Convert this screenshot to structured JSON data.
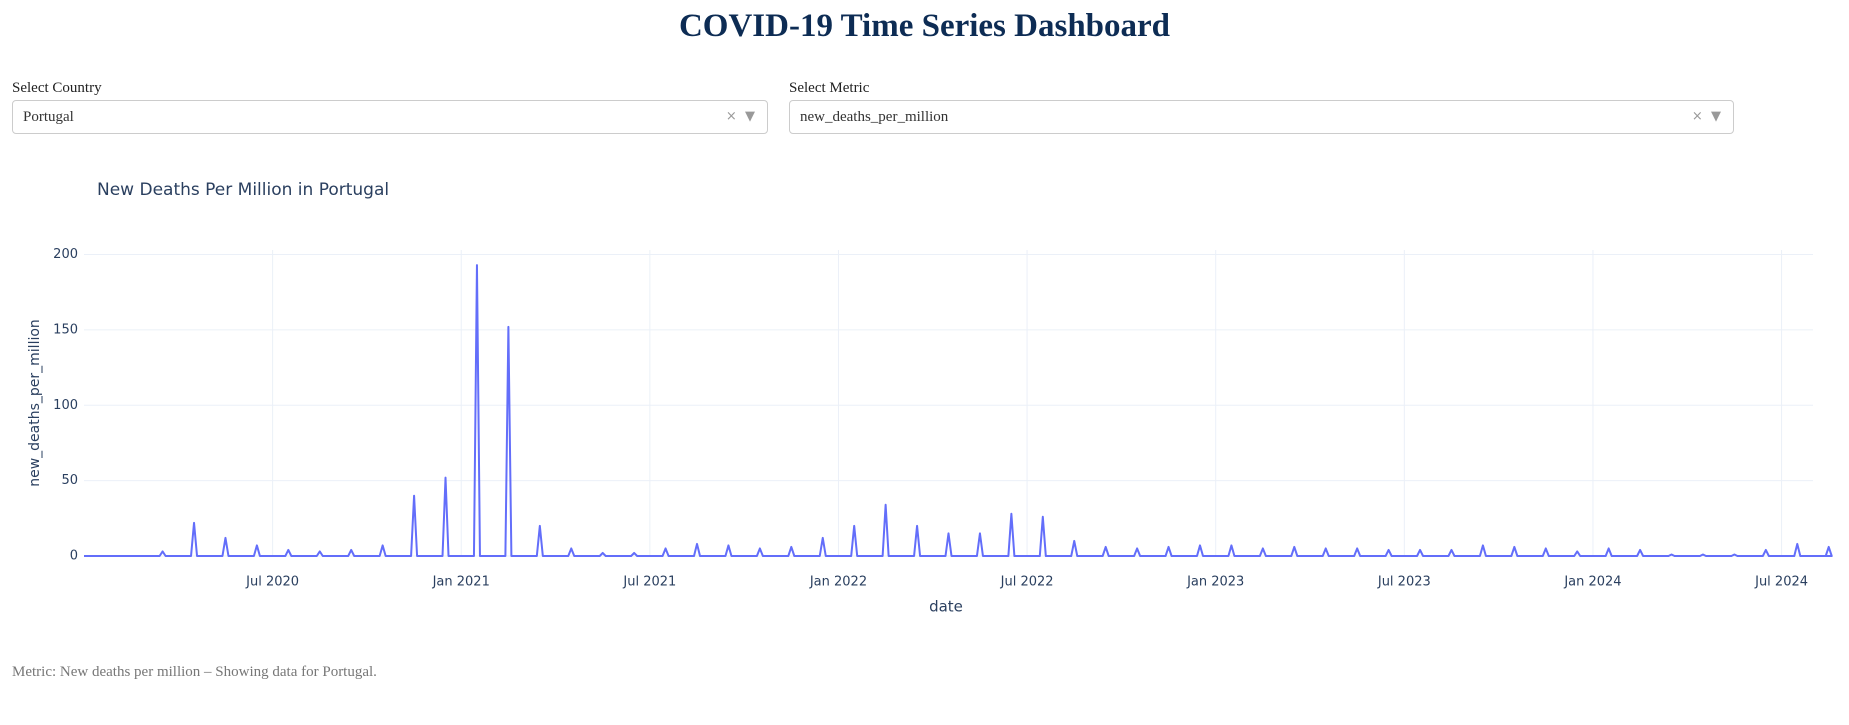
{
  "header": {
    "title": "COVID-19 Time Series Dashboard"
  },
  "controls": [
    {
      "label": "Select Country",
      "value": "Portugal"
    },
    {
      "label": "Select Metric",
      "value": "new_deaths_per_million"
    }
  ],
  "chart_data": {
    "type": "line",
    "title": "New Deaths Per Million in Portugal",
    "x_label": "date",
    "y_label": "new_deaths_per_million",
    "x": [
      "2020-01",
      "2020-02",
      "2020-03",
      "2020-04",
      "2020-05",
      "2020-06",
      "2020-07",
      "2020-08",
      "2020-09",
      "2020-10",
      "2020-11",
      "2020-12",
      "2021-01",
      "2021-02",
      "2021-03",
      "2021-04",
      "2021-05",
      "2021-06",
      "2021-07",
      "2021-08",
      "2021-09",
      "2021-10",
      "2021-11",
      "2021-12",
      "2022-01",
      "2022-02",
      "2022-03",
      "2022-04",
      "2022-05",
      "2022-06",
      "2022-07",
      "2022-08",
      "2022-09",
      "2022-10",
      "2022-11",
      "2022-12",
      "2023-01",
      "2023-02",
      "2023-03",
      "2023-04",
      "2023-05",
      "2023-06",
      "2023-07",
      "2023-08",
      "2023-09",
      "2023-10",
      "2023-11",
      "2023-12",
      "2024-01",
      "2024-02",
      "2024-03",
      "2024-04",
      "2024-05",
      "2024-06",
      "2024-07",
      "2024-08"
    ],
    "series": [
      {
        "name": "new_deaths_per_million",
        "color": "#636efa",
        "values": [
          0,
          0,
          3,
          22,
          12,
          7,
          4,
          3,
          4,
          7,
          40,
          52,
          193,
          152,
          20,
          5,
          2,
          2,
          5,
          8,
          7,
          5,
          6,
          12,
          20,
          34,
          20,
          15,
          15,
          28,
          26,
          10,
          6,
          5,
          6,
          7,
          7,
          5,
          6,
          5,
          5,
          4,
          4,
          4,
          7,
          6,
          5,
          3,
          5,
          4,
          1,
          1,
          1,
          4,
          8,
          6
        ]
      }
    ],
    "xlim": [
      "2020-01",
      "2024-08"
    ],
    "xticks": [
      {
        "value": "2020-07",
        "label": "Jul 2020"
      },
      {
        "value": "2021-01",
        "label": "Jan 2021"
      },
      {
        "value": "2021-07",
        "label": "Jul 2021"
      },
      {
        "value": "2022-01",
        "label": "Jan 2022"
      },
      {
        "value": "2022-07",
        "label": "Jul 2022"
      },
      {
        "value": "2023-01",
        "label": "Jan 2023"
      },
      {
        "value": "2023-07",
        "label": "Jul 2023"
      },
      {
        "value": "2024-01",
        "label": "Jan 2024"
      },
      {
        "value": "2024-07",
        "label": "Jul 2024"
      }
    ],
    "ylim": [
      0,
      203
    ],
    "yticks": [
      0,
      50,
      100,
      150,
      200
    ],
    "grid": true
  },
  "footer": {
    "text": "Metric: New deaths per million – Showing data for Portugal."
  }
}
